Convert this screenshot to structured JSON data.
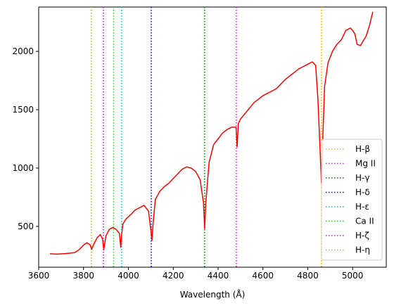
{
  "chart_data": {
    "type": "line",
    "title": "",
    "xlabel": "Wavelength (Å)",
    "ylabel": "",
    "xlim": [
      3600,
      5150
    ],
    "ylim": [
      150,
      2380
    ],
    "x_ticks": [
      3600,
      3800,
      4000,
      4200,
      4400,
      4600,
      4800,
      5000
    ],
    "y_ticks": [
      500,
      1000,
      1500,
      2000
    ],
    "grid": false,
    "legend_position": "lower right",
    "series": [
      {
        "name": "",
        "color": "#ff0000",
        "style": "solid",
        "x": [
          3650,
          3680,
          3720,
          3760,
          3780,
          3800,
          3815,
          3830,
          3836,
          3845,
          3860,
          3875,
          3885,
          3890,
          3900,
          3915,
          3930,
          3945,
          3960,
          3966,
          3970,
          3975,
          3990,
          4010,
          4030,
          4050,
          4070,
          4090,
          4100,
          4105,
          4110,
          4120,
          4140,
          4160,
          4180,
          4200,
          4220,
          4240,
          4260,
          4280,
          4300,
          4320,
          4335,
          4340,
          4345,
          4360,
          4380,
          4400,
          4420,
          4440,
          4460,
          4480,
          4485,
          4490,
          4500,
          4530,
          4560,
          4580,
          4600,
          4630,
          4660,
          4680,
          4700,
          4720,
          4740,
          4760,
          4780,
          4800,
          4820,
          4835,
          4845,
          4855,
          4861,
          4866,
          4875,
          4890,
          4910,
          4930,
          4950,
          4970,
          4990,
          5000,
          5010,
          5020,
          5035,
          5050,
          5060,
          5075,
          5090
        ],
        "y": [
          265,
          262,
          267,
          275,
          300,
          340,
          360,
          340,
          305,
          345,
          400,
          430,
          390,
          300,
          420,
          475,
          490,
          475,
          440,
          320,
          430,
          520,
          565,
          600,
          640,
          660,
          680,
          630,
          470,
          380,
          520,
          730,
          800,
          840,
          870,
          910,
          950,
          990,
          1010,
          1000,
          970,
          900,
          700,
          480,
          700,
          1050,
          1200,
          1250,
          1300,
          1330,
          1350,
          1350,
          1180,
          1380,
          1420,
          1490,
          1560,
          1590,
          1620,
          1650,
          1680,
          1720,
          1760,
          1790,
          1820,
          1850,
          1870,
          1890,
          1910,
          1880,
          1600,
          1150,
          870,
          1200,
          1700,
          1900,
          2000,
          2060,
          2100,
          2180,
          2200,
          2180,
          2150,
          2060,
          2050,
          2100,
          2130,
          2220,
          2340
        ]
      }
    ],
    "vlines": [
      {
        "label": "H-β",
        "x": 4861,
        "color": "#ffa500"
      },
      {
        "label": "Mg II",
        "x": 4481,
        "color": "#ff00ff"
      },
      {
        "label": "H-γ",
        "x": 4340,
        "color": "#008000"
      },
      {
        "label": "H-δ",
        "x": 4102,
        "color": "#0000ff"
      },
      {
        "label": "H-ε",
        "x": 3970,
        "color": "#00bfbf"
      },
      {
        "label": "Ca II",
        "x": 3934,
        "color": "#00ee00"
      },
      {
        "label": "H-ζ",
        "x": 3889,
        "color": "#dd00dd"
      },
      {
        "label": "H-η",
        "x": 3835,
        "color": "#d4b000"
      }
    ]
  }
}
